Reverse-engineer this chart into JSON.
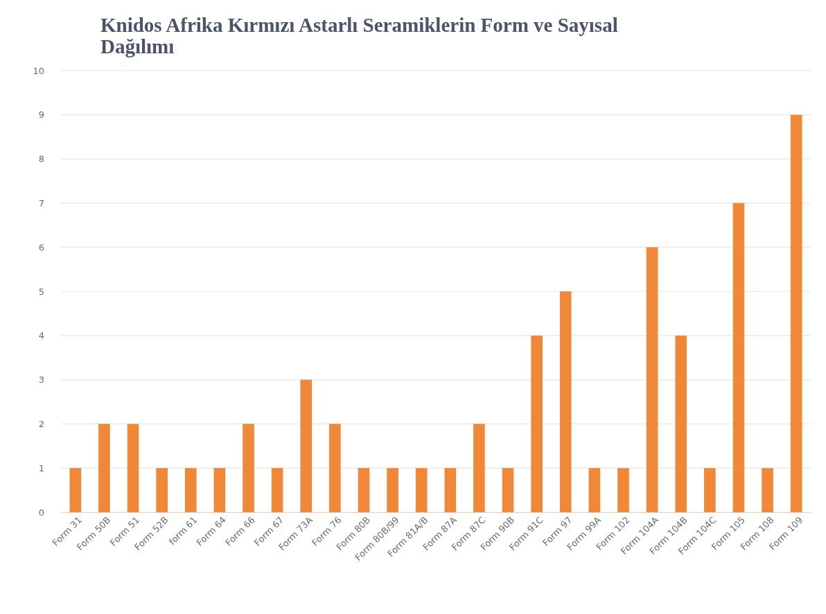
{
  "chart_data": {
    "type": "bar",
    "title": "Knidos Afrika Kırmızı Astarlı Seramiklerin Form ve Sayısal Dağılımı",
    "categories": [
      "Form 31",
      "Form 50B",
      "Form 51",
      "Form 52B",
      "form 61",
      "Form 64",
      "Form 66",
      "Form 67",
      "Form 73A",
      "Form 76",
      "Form 80B",
      "Form 80B/99",
      "Form 81A/B",
      "Form 87A",
      "Form 87C",
      "Form 90B",
      "Form 91C",
      "Form 97",
      "Form 99A",
      "Form 102",
      "Form 104A",
      "Form 104B",
      "Form 104C",
      "Form 105",
      "Form 108",
      "Form 109"
    ],
    "values": [
      1,
      2,
      2,
      1,
      1,
      1,
      2,
      1,
      3,
      2,
      1,
      1,
      1,
      1,
      2,
      1,
      4,
      5,
      1,
      1,
      6,
      4,
      1,
      7,
      1,
      9
    ],
    "color": "#f0883a",
    "ylim": [
      0,
      10
    ],
    "yticks": [
      0,
      1,
      2,
      3,
      4,
      5,
      6,
      7,
      8,
      9,
      10
    ],
    "grid": "y"
  }
}
